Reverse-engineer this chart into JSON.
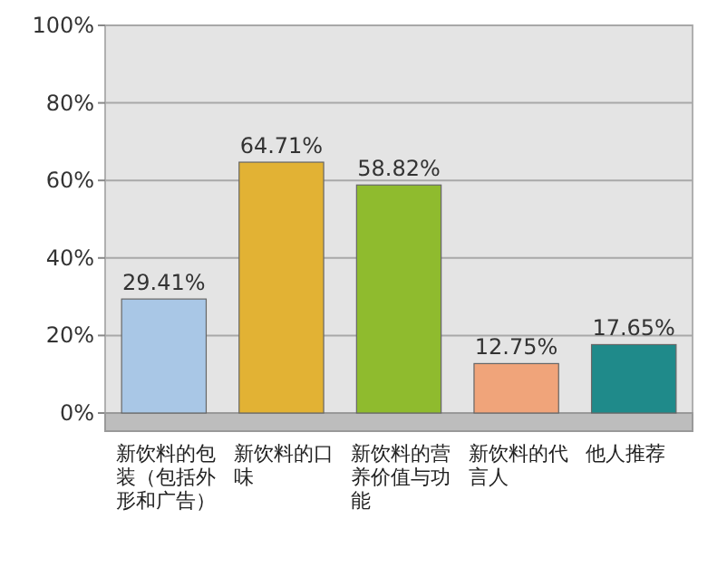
{
  "chart_data": {
    "type": "bar",
    "categories": [
      "新饮料的包装（包括外形和广告）",
      "新饮料的口味",
      "新饮料的营养价值与功能",
      "新饮料的代言人",
      "他人推荐"
    ],
    "values": [
      29.41,
      64.71,
      58.82,
      12.75,
      17.65
    ],
    "value_labels": [
      "29.41%",
      "64.71%",
      "58.82%",
      "12.75%",
      "17.65%"
    ],
    "colors": [
      "#a9c7e6",
      "#e2b234",
      "#8fbb2e",
      "#f0a47a",
      "#1f8a8a"
    ],
    "ylim": [
      0,
      100
    ],
    "yticks": [
      {
        "value": 0,
        "label": "0%"
      },
      {
        "value": 20,
        "label": "20%"
      },
      {
        "value": 40,
        "label": "40%"
      },
      {
        "value": 60,
        "label": "60%"
      },
      {
        "value": 80,
        "label": "80%"
      },
      {
        "value": 100,
        "label": "100%"
      }
    ],
    "grid": true
  }
}
